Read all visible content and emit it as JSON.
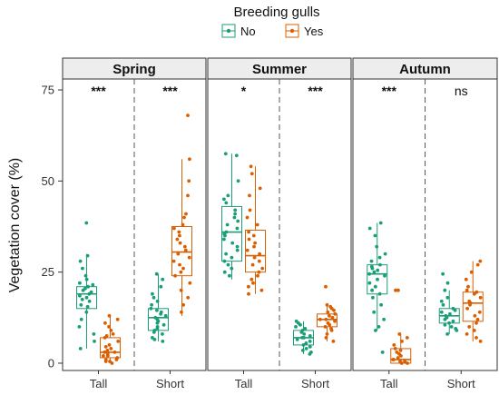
{
  "chart_data": {
    "type": "box",
    "legend": {
      "title": "Breeding gulls",
      "placement": "top-center",
      "entries": [
        {
          "label": "No",
          "color": "#1b9e77"
        },
        {
          "label": "Yes",
          "color": "#d95f02"
        }
      ]
    },
    "ylabel": "Vegetation cover (%)",
    "ylim": [
      -2,
      78
    ],
    "yticks": [
      0,
      25,
      50,
      75
    ],
    "grid": false,
    "panels": [
      {
        "name": "Spring",
        "groups": [
          {
            "category": "Tall",
            "significance": "***",
            "boxes": [
              {
                "series": "No",
                "min": 4,
                "q1": 15,
                "median": 19,
                "q3": 21,
                "max": 30,
                "points": [
                  38.5,
                  29.5,
                  28,
                  26,
                  24,
                  23,
                  22,
                  21.5,
                  21,
                  20.5,
                  20,
                  19.5,
                  19,
                  18.5,
                  18,
                  17.5,
                  17,
                  16,
                  15.5,
                  14,
                  12,
                  10,
                  8,
                  6,
                  4
                ]
              },
              {
                "series": "Yes",
                "min": 0,
                "q1": 1.5,
                "median": 3,
                "q3": 7,
                "max": 13,
                "points": [
                  13,
                  12,
                  11,
                  10,
                  9,
                  8,
                  7.5,
                  7,
                  6,
                  5,
                  4.5,
                  4,
                  3.5,
                  3,
                  3,
                  2.5,
                  2,
                  2,
                  1.5,
                  1,
                  1,
                  0.5,
                  0.5,
                  0
                ]
              }
            ]
          },
          {
            "category": "Short",
            "significance": "***",
            "boxes": [
              {
                "series": "No",
                "min": 6,
                "q1": 9,
                "median": 12.5,
                "q3": 15,
                "max": 24.5,
                "points": [
                  24.5,
                  23,
                  21,
                  19,
                  18,
                  17,
                  16,
                  15,
                  14.5,
                  14,
                  13.5,
                  13,
                  12.5,
                  12,
                  11.5,
                  11,
                  10.5,
                  10,
                  9.5,
                  9,
                  8.5,
                  8,
                  7,
                  6.5,
                  6
                ]
              },
              {
                "series": "Yes",
                "min": 13,
                "q1": 24,
                "median": 30.5,
                "q3": 37.5,
                "max": 56,
                "points": [
                  68,
                  56,
                  50,
                  46,
                  41,
                  40,
                  38,
                  37,
                  36,
                  35,
                  34,
                  33,
                  32,
                  31,
                  30,
                  29,
                  28,
                  27,
                  26,
                  25,
                  24,
                  22,
                  20,
                  18,
                  16,
                  14
                ]
              }
            ]
          }
        ]
      },
      {
        "name": "Summer",
        "groups": [
          {
            "category": "Tall",
            "significance": "*",
            "boxes": [
              {
                "series": "No",
                "min": 23,
                "q1": 28,
                "median": 36,
                "q3": 43,
                "max": 57.5,
                "points": [
                  57.5,
                  57,
                  50,
                  46,
                  45,
                  44,
                  42,
                  41,
                  40,
                  39,
                  38,
                  37,
                  36,
                  35.5,
                  35,
                  34,
                  33,
                  32,
                  31,
                  30,
                  29,
                  28,
                  27,
                  26,
                  25,
                  24
                ]
              },
              {
                "series": "Yes",
                "min": 19,
                "q1": 25,
                "median": 29.5,
                "q3": 36.5,
                "max": 54,
                "points": [
                  54,
                  52,
                  48,
                  46,
                  42,
                  40,
                  38,
                  36,
                  35,
                  34,
                  33,
                  32,
                  31,
                  30,
                  29,
                  28,
                  27,
                  26,
                  25,
                  24,
                  23,
                  22,
                  21,
                  20,
                  19
                ]
              }
            ]
          },
          {
            "category": "Short",
            "significance": "***",
            "boxes": [
              {
                "series": "No",
                "min": 2.5,
                "q1": 5,
                "median": 7,
                "q3": 9,
                "max": 11.5,
                "points": [
                  11.5,
                  11,
                  10.5,
                  10,
                  9.5,
                  9,
                  8.5,
                  8,
                  7.5,
                  7,
                  7,
                  6.5,
                  6,
                  5.5,
                  5,
                  4.5,
                  4,
                  3.5,
                  3,
                  2.5
                ]
              },
              {
                "series": "Yes",
                "min": 6,
                "q1": 10,
                "median": 12,
                "q3": 13.5,
                "max": 16,
                "points": [
                  21,
                  16,
                  15.5,
                  15,
                  14.5,
                  14,
                  13.5,
                  13,
                  12.5,
                  12,
                  12,
                  11.5,
                  11,
                  10.5,
                  10,
                  9.5,
                  9,
                  8,
                  7,
                  6
                ]
              }
            ]
          }
        ]
      },
      {
        "name": "Autumn",
        "groups": [
          {
            "category": "Tall",
            "significance": "***",
            "boxes": [
              {
                "series": "No",
                "min": 9,
                "q1": 19,
                "median": 24.5,
                "q3": 27,
                "max": 38.5,
                "points": [
                  38.5,
                  37,
                  35,
                  32,
                  30,
                  29,
                  28,
                  27,
                  26.5,
                  26,
                  25.5,
                  25,
                  24.5,
                  24,
                  23,
                  22,
                  21,
                  20,
                  19,
                  18,
                  16,
                  14,
                  12,
                  10,
                  9,
                  3
                ]
              },
              {
                "series": "Yes",
                "min": 0,
                "q1": 0,
                "median": 1,
                "q3": 4,
                "max": 8,
                "points": [
                  20,
                  20,
                  8,
                  7,
                  6,
                  5,
                  4,
                  3.5,
                  3,
                  2.5,
                  2,
                  1.5,
                  1,
                  1,
                  0.5,
                  0.5,
                  0,
                  0
                ]
              }
            ]
          },
          {
            "category": "Short",
            "significance": "ns",
            "boxes": [
              {
                "series": "No",
                "min": 8,
                "q1": 11,
                "median": 13,
                "q3": 15,
                "max": 20,
                "points": [
                  24.5,
                  22,
                  20,
                  18,
                  17,
                  16,
                  15,
                  14.5,
                  14,
                  13.5,
                  13,
                  12.5,
                  12,
                  11.5,
                  11,
                  10.5,
                  10,
                  9.5,
                  9,
                  8
                ]
              },
              {
                "series": "Yes",
                "min": 6,
                "q1": 11.5,
                "median": 16.5,
                "q3": 19.5,
                "max": 28,
                "points": [
                  28,
                  27,
                  25,
                  23,
                  21,
                  20,
                  19.5,
                  19,
                  18,
                  17,
                  16.5,
                  16,
                  15,
                  14,
                  13,
                  12,
                  11,
                  10,
                  9,
                  8,
                  7,
                  6
                ]
              }
            ]
          }
        ]
      }
    ]
  }
}
